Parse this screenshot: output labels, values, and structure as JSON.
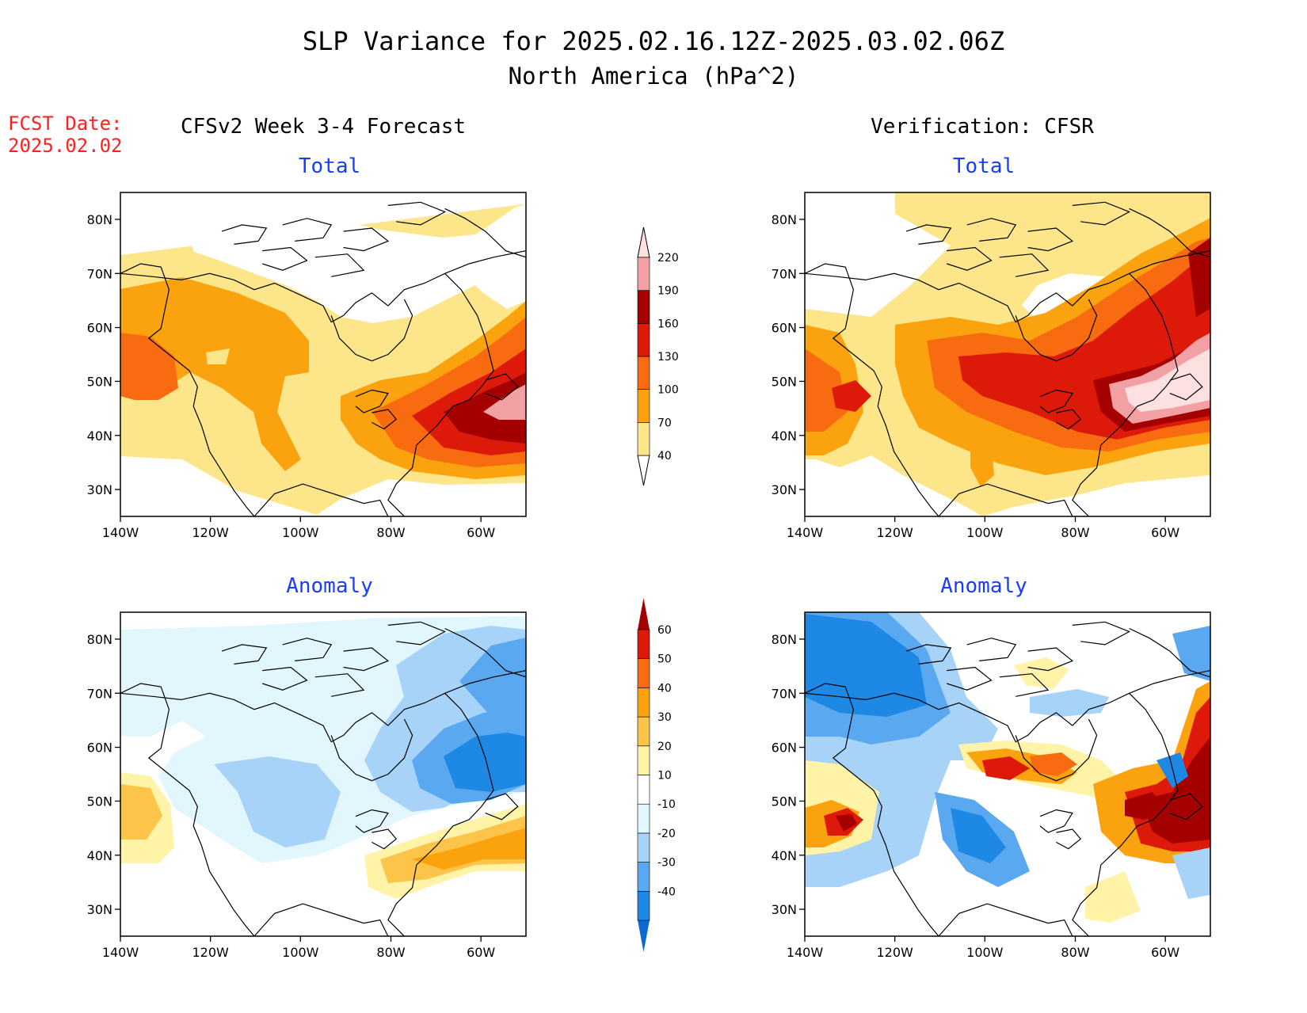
{
  "title": {
    "line1": "SLP Variance for 2025.02.16.12Z-2025.03.02.06Z",
    "line2": "North America (hPa^2)"
  },
  "fcst": {
    "label": "FCST Date:",
    "date": "2025.02.02",
    "color": "#ff2020"
  },
  "columns": {
    "left": "CFSv2 Week 3-4 Forecast",
    "right": "Verification: CFSR"
  },
  "panel_titles": {
    "total": "Total",
    "anomaly": "Anomaly",
    "color": "#1a3cff"
  },
  "axes": {
    "lat_ticks": [
      "80N",
      "70N",
      "60N",
      "50N",
      "40N",
      "30N"
    ],
    "lon_ticks": [
      "140W",
      "120W",
      "100W",
      "80W",
      "60W"
    ]
  },
  "colorbars": {
    "total": {
      "labels": [
        "40",
        "70",
        "100",
        "130",
        "160",
        "190",
        "220"
      ],
      "colors": [
        "#fde68a",
        "#fba30f",
        "#f86b10",
        "#dd1a0a",
        "#a50000",
        "#f2a0a3",
        "#fde0e0"
      ]
    },
    "anomaly": {
      "labels": [
        "-40",
        "-30",
        "-20",
        "-10",
        "10",
        "20",
        "30",
        "40",
        "50",
        "60"
      ],
      "colors": [
        "#0a6ad2",
        "#1e88e5",
        "#5aa9f0",
        "#a7d3f8",
        "#e2f7fd",
        "#ffffff",
        "#fff3a8",
        "#fdc44a",
        "#fba30f",
        "#f86b10",
        "#dd1a0a",
        "#a50000"
      ]
    }
  },
  "map_colors": {
    "total_levels": [
      "#ffffff",
      "#fde68a",
      "#fba30f",
      "#f86b10",
      "#dd1a0a",
      "#a50000",
      "#fde0e0"
    ],
    "anom_neg": [
      "#0a6ad2",
      "#1e88e5",
      "#5aa9f0",
      "#a7d3f8",
      "#e2f7fd"
    ],
    "anom_pos": [
      "#fff3a8",
      "#fdc44a",
      "#fba30f",
      "#f86b10",
      "#dd1a0a",
      "#a50000"
    ]
  }
}
